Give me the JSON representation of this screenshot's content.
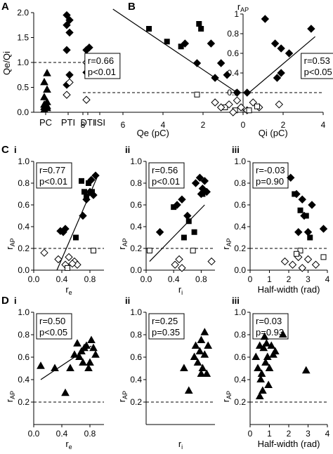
{
  "chart_data": [
    {
      "panel": "A",
      "type": "scatter",
      "ylabel": "Qe/Qi",
      "ylim": [
        0,
        2
      ],
      "categories": [
        "PC",
        "PTI",
        "DTI",
        "ISI"
      ],
      "yticks": [
        "0.0",
        "0.5",
        "1.0",
        "1.5",
        "2.0"
      ],
      "ref_line": 1.0,
      "series": [
        {
          "marker": "triangle-filled",
          "x": [
            "PC",
            "PC",
            "PC",
            "PC",
            "PC",
            "PC",
            "PC",
            "PC",
            "PC",
            "PC"
          ],
          "y": [
            0.05,
            0.08,
            0.1,
            0.12,
            0.15,
            0.2,
            0.3,
            0.45,
            0.6,
            0.78
          ]
        },
        {
          "marker": "diamond-filled",
          "x": [
            "PTI",
            "PTI",
            "PTI",
            "PTI",
            "PTI",
            "PTI",
            "PTI"
          ],
          "y": [
            0.55,
            0.75,
            1.25,
            1.6,
            1.75,
            1.85,
            1.95
          ]
        },
        {
          "marker": "diamond-open",
          "x": [
            "PTI",
            "PTI"
          ],
          "y": [
            0.35,
            0.6
          ]
        },
        {
          "marker": "diamond-filled",
          "x": [
            "DTI",
            "DTI",
            "DTI",
            "DTI"
          ],
          "y": [
            0.8,
            1.05,
            1.25,
            1.3
          ]
        },
        {
          "marker": "diamond-open",
          "x": [
            "DTI",
            "DTI",
            "DTI"
          ],
          "y": [
            0.25,
            0.75,
            1.0
          ]
        },
        {
          "marker": "square-filled",
          "x": [
            "ISI",
            "ISI"
          ],
          "y": [
            0.95,
            1.0
          ]
        },
        {
          "marker": "square-open",
          "x": [
            "ISI",
            "ISI",
            "ISI"
          ],
          "y": [
            0.9,
            1.05,
            1.1
          ]
        }
      ]
    },
    {
      "panel": "B",
      "type": "scatter",
      "ylabel": "rAP",
      "ylim": [
        0,
        1
      ],
      "xlabel_left": "Qe (pC)",
      "xlabel_right": "Qi (pC)",
      "xticks": [
        "8",
        "6",
        "4",
        "2",
        "0",
        "2",
        "4",
        "6",
        "8"
      ],
      "yticks": [
        "0.2",
        "0.4",
        "0.6",
        "0.8",
        "1"
      ],
      "ref_line": 0.2,
      "stats_left": [
        "r=0.66",
        "p<0.01"
      ],
      "stats_right": [
        "r=0.53",
        "p<0.05"
      ],
      "fit_left": {
        "q": [
          6.5,
          0.3
        ],
        "r": [
          1.05,
          0.2
        ]
      },
      "fit_right": {
        "q": [
          0.3,
          3.6
        ],
        "r": [
          0.2,
          0.77
        ]
      },
      "series": [
        {
          "side": "Qe",
          "marker": "square-filled",
          "q": [
            4.7,
            3.8,
            3.1,
            2.2,
            2.1
          ],
          "r": [
            0.85,
            0.72,
            0.67,
            0.9,
            0.85
          ]
        },
        {
          "side": "Qe",
          "marker": "diamond-filled",
          "q": [
            2.9,
            2.3,
            1.6,
            1.1,
            1.4,
            0.8,
            0.3
          ],
          "r": [
            0.7,
            0.5,
            0.7,
            0.5,
            0.35,
            0.38,
            0.2
          ]
        },
        {
          "side": "Qi",
          "marker": "diamond-filled",
          "q": [
            1.1,
            1.6,
            1.9,
            2.3,
            3.4,
            1.7,
            1.9,
            0.2
          ],
          "r": [
            0.95,
            0.7,
            0.65,
            0.6,
            0.85,
            0.35,
            0.4,
            0.2
          ]
        },
        {
          "side": "Qe",
          "marker": "square-open",
          "q": [
            2.3,
            0.9,
            0.4
          ],
          "r": [
            0.18,
            0.05,
            0.02
          ]
        },
        {
          "side": "Qe",
          "marker": "diamond-open",
          "q": [
            1.4,
            1.1,
            0.7,
            0.5,
            0.3,
            0.1
          ],
          "r": [
            0.1,
            0.05,
            0.08,
            0.0,
            0.12,
            0.05
          ]
        },
        {
          "side": "Qi",
          "marker": "diamond-open",
          "q": [
            0.2,
            0.5,
            0.8,
            1.8
          ],
          "r": [
            0.02,
            0.1,
            0.05,
            0.08
          ]
        },
        {
          "side": "Qi",
          "marker": "square-open",
          "q": [
            0.3,
            0.7
          ],
          "r": [
            0.02,
            0.06
          ]
        }
      ]
    },
    {
      "panel": "C",
      "sub": "i",
      "type": "scatter",
      "xlabel": "re",
      "ylabel": "rAP",
      "xlim": [
        0,
        1
      ],
      "ylim": [
        0,
        1
      ],
      "xticks": [
        "0.0",
        "0.4",
        "0.8"
      ],
      "yticks": [
        "0.0",
        "0.2",
        "0.4",
        "0.6",
        "0.8",
        "1.0"
      ],
      "ref_line": 0.2,
      "stats": [
        "r=0.77",
        "p<0.01"
      ],
      "fit": {
        "x": [
          0.33,
          0.9
        ],
        "y": [
          0.0,
          0.85
        ]
      },
      "series": [
        {
          "marker": "diamond-filled",
          "x": [
            0.38,
            0.42,
            0.45,
            0.7,
            0.75,
            0.8,
            0.82,
            0.88,
            0.85
          ],
          "y": [
            0.36,
            0.35,
            0.38,
            0.5,
            0.65,
            0.72,
            0.83,
            0.87,
            0.69
          ]
        },
        {
          "marker": "square-filled",
          "x": [
            0.6,
            0.68,
            0.72,
            0.75,
            0.78,
            0.83
          ],
          "y": [
            0.3,
            0.82,
            0.72,
            0.68,
            0.8,
            0.72
          ]
        },
        {
          "marker": "diamond-open",
          "x": [
            0.15,
            0.35,
            0.45,
            0.5,
            0.58,
            0.62,
            0.55
          ],
          "y": [
            0.16,
            0.1,
            0.05,
            0.12,
            0.08,
            0.05,
            0.06
          ]
        },
        {
          "marker": "square-open",
          "x": [
            0.85,
            0.48
          ],
          "y": [
            0.18,
            0.02
          ]
        }
      ]
    },
    {
      "panel": "C",
      "sub": "ii",
      "type": "scatter",
      "xlabel": "ri",
      "ylabel": "rAP",
      "xlim": [
        0,
        1
      ],
      "ylim": [
        0,
        1
      ],
      "xticks": [
        "0.0",
        "0.4",
        "0.8"
      ],
      "yticks": [
        "0.0",
        "0.2",
        "0.4",
        "0.6",
        "0.8",
        "1.0"
      ],
      "ref_line": 0.2,
      "stats": [
        "r=0.56",
        "p<0.01"
      ],
      "fit": {
        "x": [
          0.05,
          0.85
        ],
        "y": [
          0.08,
          0.6
        ]
      },
      "series": [
        {
          "marker": "diamond-filled",
          "x": [
            0.2,
            0.45,
            0.52,
            0.6,
            0.72,
            0.78,
            0.8,
            0.82,
            0.85,
            0.88
          ],
          "y": [
            0.35,
            0.6,
            0.65,
            0.5,
            0.8,
            0.85,
            0.7,
            0.75,
            0.82,
            0.72
          ]
        },
        {
          "marker": "square-filled",
          "x": [
            0.4,
            0.55,
            0.62,
            0.7,
            0.82
          ],
          "y": [
            0.58,
            0.3,
            0.45,
            0.35,
            0.7
          ]
        },
        {
          "marker": "diamond-open",
          "x": [
            0.42,
            0.48,
            0.52,
            0.95
          ],
          "y": [
            0.05,
            0.1,
            0.02,
            0.08
          ]
        },
        {
          "marker": "square-open",
          "x": [
            0.05,
            0.68
          ],
          "y": [
            0.18,
            0.18
          ]
        }
      ]
    },
    {
      "panel": "C",
      "sub": "iii",
      "type": "scatter",
      "xlabel": "Half-width (rad)",
      "ylabel": "rAP",
      "xlim": [
        0,
        4
      ],
      "ylim": [
        0,
        1
      ],
      "xticks": [
        "0",
        "1",
        "2",
        "3",
        "4"
      ],
      "yticks": [
        "0.0",
        "0.2",
        "0.4",
        "0.6",
        "0.8",
        "1.0"
      ],
      "ref_line": 0.2,
      "stats": [
        "r=-0.03",
        "p=0.90"
      ],
      "series": [
        {
          "marker": "diamond-filled",
          "x": [
            2.1,
            2.4,
            2.5,
            2.7,
            2.8,
            3.0,
            3.2,
            3.8
          ],
          "y": [
            0.85,
            0.7,
            0.35,
            0.65,
            0.5,
            0.35,
            0.6,
            0.38
          ]
        },
        {
          "marker": "square-filled",
          "x": [
            2.3,
            2.6,
            2.9,
            3.1
          ],
          "y": [
            0.7,
            0.55,
            0.5,
            0.3
          ]
        },
        {
          "marker": "diamond-open",
          "x": [
            1.8,
            2.2,
            2.5,
            2.7,
            3.0,
            3.4
          ],
          "y": [
            0.08,
            0.05,
            0.12,
            0.02,
            0.1,
            0.05
          ]
        },
        {
          "marker": "square-open",
          "x": [
            2.6,
            3.8,
            2.4
          ],
          "y": [
            0.18,
            0.12,
            0.15
          ]
        }
      ]
    },
    {
      "panel": "D",
      "sub": "i",
      "type": "scatter",
      "xlabel": "re",
      "ylabel": "rAP",
      "xlim": [
        0,
        1
      ],
      "ylim": [
        0,
        1
      ],
      "xticks": [
        "0.0",
        "0.4",
        "0.8"
      ],
      "yticks": [
        "0.2",
        "0.4",
        "0.6",
        "0.8",
        "1.0"
      ],
      "ref_line": 0.2,
      "stats": [
        "r=0.50",
        "p<0.05"
      ],
      "fit": {
        "x": [
          0.1,
          0.82
        ],
        "y": [
          0.4,
          0.7
        ]
      },
      "series": [
        {
          "marker": "triangle-filled",
          "x": [
            0.1,
            0.3,
            0.45,
            0.52,
            0.58,
            0.62,
            0.65,
            0.68,
            0.7,
            0.72,
            0.75,
            0.78,
            0.8,
            0.82,
            0.85,
            0.88
          ],
          "y": [
            0.52,
            0.5,
            0.28,
            0.5,
            0.62,
            0.72,
            0.6,
            0.65,
            0.55,
            0.68,
            0.7,
            0.5,
            0.55,
            0.75,
            0.68,
            0.62
          ]
        }
      ]
    },
    {
      "panel": "D",
      "sub": "ii",
      "type": "scatter",
      "xlabel": "ri",
      "ylabel": "rAP",
      "xlim": [
        0,
        1
      ],
      "ylim": [
        0,
        1
      ],
      "xticks": [],
      "yticks": [
        "0.2",
        "0.4",
        "0.6",
        "0.8",
        "1.0"
      ],
      "ref_line": 0.2,
      "stats": [
        "r=0.25",
        "p=0.35"
      ],
      "series": [
        {
          "marker": "triangle-filled",
          "x": [
            0.55,
            0.62,
            0.7,
            0.72,
            0.75,
            0.78,
            0.8,
            0.82,
            0.85,
            0.88,
            0.9,
            0.85,
            0.8
          ],
          "y": [
            0.5,
            0.3,
            0.6,
            0.7,
            0.55,
            0.65,
            0.75,
            0.5,
            0.62,
            0.45,
            0.7,
            0.82,
            0.45
          ]
        }
      ]
    },
    {
      "panel": "D",
      "sub": "iii",
      "type": "scatter",
      "xlabel": "Half-width (rad)",
      "ylabel": "rAP",
      "xlim": [
        0,
        4
      ],
      "ylim": [
        0,
        1
      ],
      "xticks": [
        "0",
        "1",
        "2",
        "3",
        "4"
      ],
      "yticks": [
        "0.2",
        "0.4",
        "0.6",
        "0.8",
        "1.0"
      ],
      "ref_line": 0.2,
      "stats": [
        "r=0.03",
        "p=0.93"
      ],
      "series": [
        {
          "marker": "triangle-filled",
          "x": [
            0.3,
            0.4,
            0.5,
            0.6,
            0.7,
            0.8,
            0.85,
            0.9,
            1.0,
            1.1,
            1.2,
            1.3,
            0.55,
            0.65,
            0.75,
            0.95,
            1.7,
            2.9,
            0.5
          ],
          "y": [
            0.6,
            0.5,
            0.7,
            0.45,
            0.68,
            0.55,
            0.72,
            0.6,
            0.5,
            0.7,
            0.62,
            0.65,
            0.4,
            0.3,
            0.78,
            0.35,
            0.8,
            0.48,
            0.25
          ]
        }
      ]
    }
  ]
}
